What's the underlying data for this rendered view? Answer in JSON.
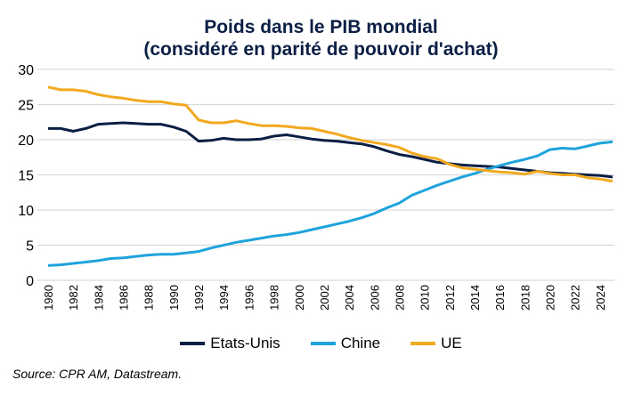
{
  "chart_data": {
    "type": "line",
    "title": [
      "Poids dans le PIB mondial",
      "(considéré en parité de pouvoir d'achat)"
    ],
    "xlabel": "",
    "ylabel": "",
    "ylim": [
      0,
      30
    ],
    "yticks": [
      0,
      5,
      10,
      15,
      20,
      25,
      30
    ],
    "xlim": [
      1980,
      2025
    ],
    "xticks": [
      1980,
      1982,
      1984,
      1986,
      1988,
      1990,
      1992,
      1994,
      1996,
      1998,
      2000,
      2002,
      2004,
      2006,
      2008,
      2010,
      2012,
      2014,
      2016,
      2018,
      2020,
      2022,
      2024
    ],
    "grid": "horizontal",
    "legend_position": "bottom",
    "x": [
      1980,
      1981,
      1982,
      1983,
      1984,
      1985,
      1986,
      1987,
      1988,
      1989,
      1990,
      1991,
      1992,
      1993,
      1994,
      1995,
      1996,
      1997,
      1998,
      1999,
      2000,
      2001,
      2002,
      2003,
      2004,
      2005,
      2006,
      2007,
      2008,
      2009,
      2010,
      2011,
      2012,
      2013,
      2014,
      2015,
      2016,
      2017,
      2018,
      2019,
      2020,
      2021,
      2022,
      2023,
      2024,
      2025
    ],
    "series": [
      {
        "name": "Etats-Unis",
        "color": "#0b1f45",
        "values": [
          21.6,
          21.6,
          21.2,
          21.6,
          22.2,
          22.3,
          22.4,
          22.3,
          22.2,
          22.2,
          21.8,
          21.2,
          19.8,
          19.9,
          20.2,
          20.0,
          20.0,
          20.1,
          20.5,
          20.7,
          20.4,
          20.1,
          19.9,
          19.8,
          19.6,
          19.4,
          19.0,
          18.4,
          17.9,
          17.6,
          17.2,
          16.8,
          16.6,
          16.4,
          16.3,
          16.2,
          16.1,
          15.9,
          15.7,
          15.5,
          15.3,
          15.2,
          15.1,
          15.0,
          14.9,
          14.7
        ]
      },
      {
        "name": "Chine",
        "color": "#1fa3dc",
        "values": [
          2.1,
          2.2,
          2.4,
          2.6,
          2.8,
          3.1,
          3.2,
          3.4,
          3.6,
          3.7,
          3.7,
          3.9,
          4.1,
          4.6,
          5.0,
          5.4,
          5.7,
          6.0,
          6.3,
          6.5,
          6.8,
          7.2,
          7.6,
          8.0,
          8.4,
          8.9,
          9.5,
          10.3,
          11.0,
          12.1,
          12.8,
          13.5,
          14.1,
          14.7,
          15.2,
          15.8,
          16.3,
          16.8,
          17.2,
          17.7,
          18.6,
          18.8,
          18.7,
          19.1,
          19.5,
          19.7
        ]
      },
      {
        "name": "UE",
        "color": "#f2a91f",
        "values": [
          27.5,
          27.1,
          27.1,
          26.9,
          26.4,
          26.1,
          25.9,
          25.6,
          25.4,
          25.4,
          25.1,
          24.9,
          22.8,
          22.4,
          22.4,
          22.7,
          22.3,
          22.0,
          22.0,
          21.9,
          21.7,
          21.6,
          21.2,
          20.8,
          20.3,
          19.9,
          19.6,
          19.3,
          18.9,
          18.1,
          17.6,
          17.3,
          16.5,
          16.0,
          15.8,
          15.6,
          15.4,
          15.3,
          15.1,
          15.5,
          15.2,
          15.0,
          15.0,
          14.6,
          14.4,
          14.1
        ]
      }
    ]
  },
  "source": "Source: CPR AM, Datastream."
}
